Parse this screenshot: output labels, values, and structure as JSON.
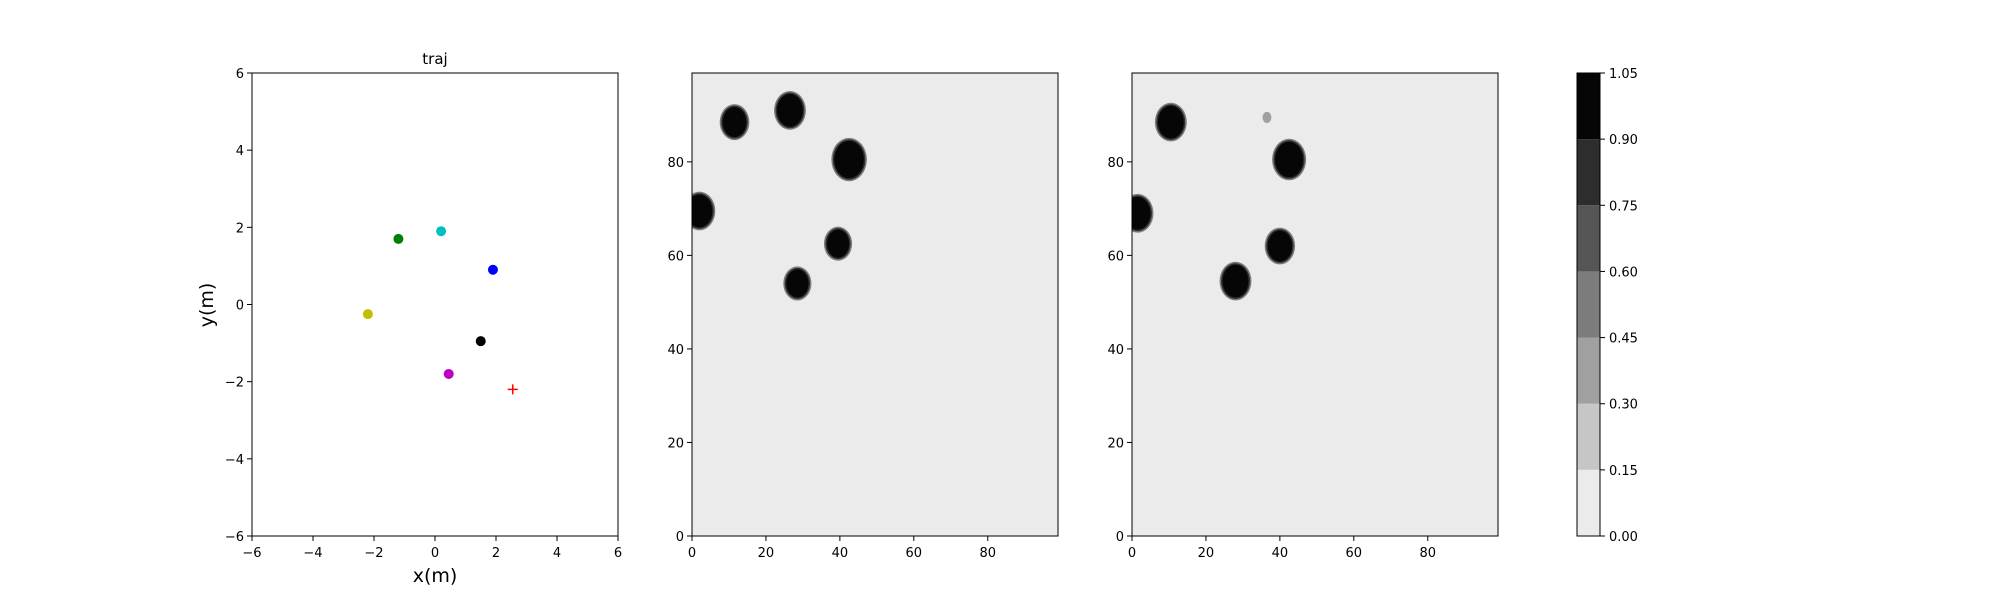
{
  "chart_data": [
    {
      "type": "scatter",
      "title": "traj",
      "xlabel": "x(m)",
      "ylabel": "y(m)",
      "xlim": [
        -6,
        6
      ],
      "ylim": [
        -6,
        6
      ],
      "xticks": [
        "−6",
        "−4",
        "−2",
        "0",
        "2",
        "4",
        "6"
      ],
      "yticks": [
        "−6",
        "−4",
        "−2",
        "0",
        "2",
        "4",
        "6"
      ],
      "grid": false,
      "points": [
        {
          "x": -1.2,
          "y": 1.7,
          "color": "#008000",
          "marker": "circle"
        },
        {
          "x": 0.2,
          "y": 1.9,
          "color": "#00bfbf",
          "marker": "circle"
        },
        {
          "x": 1.9,
          "y": 0.9,
          "color": "#0000ff",
          "marker": "circle"
        },
        {
          "x": -2.2,
          "y": -0.25,
          "color": "#bfbf00",
          "marker": "circle"
        },
        {
          "x": 1.5,
          "y": -0.95,
          "color": "#000000",
          "marker": "circle"
        },
        {
          "x": 0.45,
          "y": -1.8,
          "color": "#bf00bf",
          "marker": "circle"
        },
        {
          "x": 2.55,
          "y": -2.2,
          "color": "#ff0000",
          "marker": "plus"
        }
      ]
    },
    {
      "type": "heatmap",
      "xlim": [
        0,
        99
      ],
      "ylim": [
        0,
        99
      ],
      "xticks": [
        "0",
        "20",
        "40",
        "60",
        "80"
      ],
      "yticks": [
        "0",
        "20",
        "40",
        "60",
        "80"
      ],
      "background_value": 0.05,
      "blobs": [
        {
          "x": 11.5,
          "y": 88.5,
          "r": 3.2,
          "value": 1.0
        },
        {
          "x": 26.5,
          "y": 91,
          "r": 3.5,
          "value": 1.0
        },
        {
          "x": 42.5,
          "y": 80.5,
          "r": 4.0,
          "value": 1.0
        },
        {
          "x": 2.0,
          "y": 69.5,
          "r": 3.5,
          "value": 1.0
        },
        {
          "x": 39.5,
          "y": 62.5,
          "r": 3.0,
          "value": 1.0
        },
        {
          "x": 28.5,
          "y": 54,
          "r": 3.0,
          "value": 1.0
        }
      ]
    },
    {
      "type": "heatmap",
      "xlim": [
        0,
        99
      ],
      "ylim": [
        0,
        99
      ],
      "xticks": [
        "0",
        "20",
        "40",
        "60",
        "80"
      ],
      "yticks": [
        "0",
        "20",
        "40",
        "60",
        "80"
      ],
      "background_value": 0.05,
      "blobs": [
        {
          "x": 10.5,
          "y": 88.5,
          "r": 3.5,
          "value": 1.0
        },
        {
          "x": 36.5,
          "y": 89.5,
          "r": 1.2,
          "value": 0.3
        },
        {
          "x": 42.5,
          "y": 80.5,
          "r": 3.8,
          "value": 1.0
        },
        {
          "x": 1.5,
          "y": 69,
          "r": 3.5,
          "value": 1.0
        },
        {
          "x": 40.0,
          "y": 62,
          "r": 3.3,
          "value": 1.0
        },
        {
          "x": 28.0,
          "y": 54.5,
          "r": 3.5,
          "value": 1.0
        }
      ]
    }
  ],
  "colorbar": {
    "levels": [
      0.0,
      0.15,
      0.3,
      0.45,
      0.6,
      0.75,
      0.9,
      1.05
    ],
    "tick_labels": [
      "0.00",
      "0.15",
      "0.30",
      "0.45",
      "0.60",
      "0.75",
      "0.90",
      "1.05"
    ],
    "colors": [
      "#ebebeb",
      "#c6c6c6",
      "#a0a0a0",
      "#7c7c7c",
      "#555555",
      "#2d2d2d",
      "#060606"
    ]
  }
}
